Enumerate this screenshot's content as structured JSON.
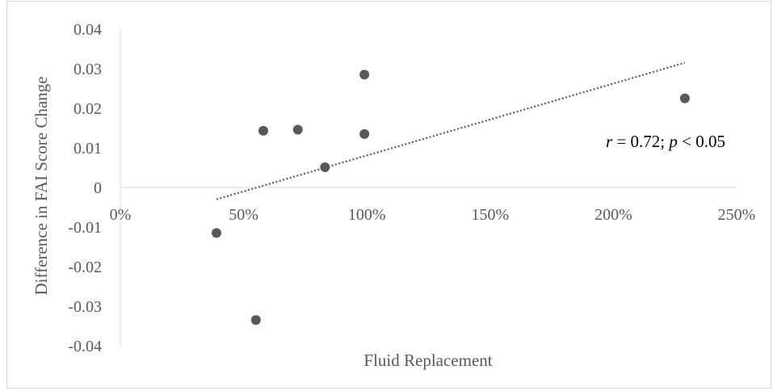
{
  "chart_data": {
    "type": "scatter",
    "xlabel": "Fluid Replacement",
    "ylabel": "Difference in FAI Score Change",
    "xlim": [
      0,
      2.5
    ],
    "ylim": [
      -0.04,
      0.04
    ],
    "x_ticks": [
      {
        "value": 0,
        "label": "0%"
      },
      {
        "value": 0.5,
        "label": "50%"
      },
      {
        "value": 1.0,
        "label": "100%"
      },
      {
        "value": 1.5,
        "label": "150%"
      },
      {
        "value": 2.0,
        "label": "200%"
      },
      {
        "value": 2.5,
        "label": "250%"
      }
    ],
    "y_ticks": [
      {
        "value": 0.04,
        "label": "0.04"
      },
      {
        "value": 0.03,
        "label": "0.03"
      },
      {
        "value": 0.02,
        "label": "0.02"
      },
      {
        "value": 0.01,
        "label": "0.01"
      },
      {
        "value": 0,
        "label": "0"
      },
      {
        "value": -0.01,
        "label": "-0.01"
      },
      {
        "value": -0.02,
        "label": "-0.02"
      },
      {
        "value": -0.03,
        "label": "-0.03"
      },
      {
        "value": -0.04,
        "label": "-0.04"
      }
    ],
    "points": [
      {
        "x": 0.39,
        "y": -0.0115
      },
      {
        "x": 0.55,
        "y": -0.0335
      },
      {
        "x": 0.58,
        "y": 0.0143
      },
      {
        "x": 0.72,
        "y": 0.0146
      },
      {
        "x": 0.83,
        "y": 0.0051
      },
      {
        "x": 0.99,
        "y": 0.0135
      },
      {
        "x": 0.99,
        "y": 0.0285
      },
      {
        "x": 2.29,
        "y": 0.0225
      }
    ],
    "trendline": {
      "type": "linear",
      "style": "dotted",
      "x_start": 0.39,
      "x_end": 2.29,
      "y_start": -0.003,
      "y_end": 0.0315
    },
    "annotation": {
      "r_symbol": "r",
      "r_text": " = 0.72; ",
      "p_symbol": "p",
      "p_text": " < 0.05"
    },
    "grid": false,
    "marker_color": "#595959",
    "trendline_color": "#595959",
    "axis_color": "#d9d9d9"
  }
}
